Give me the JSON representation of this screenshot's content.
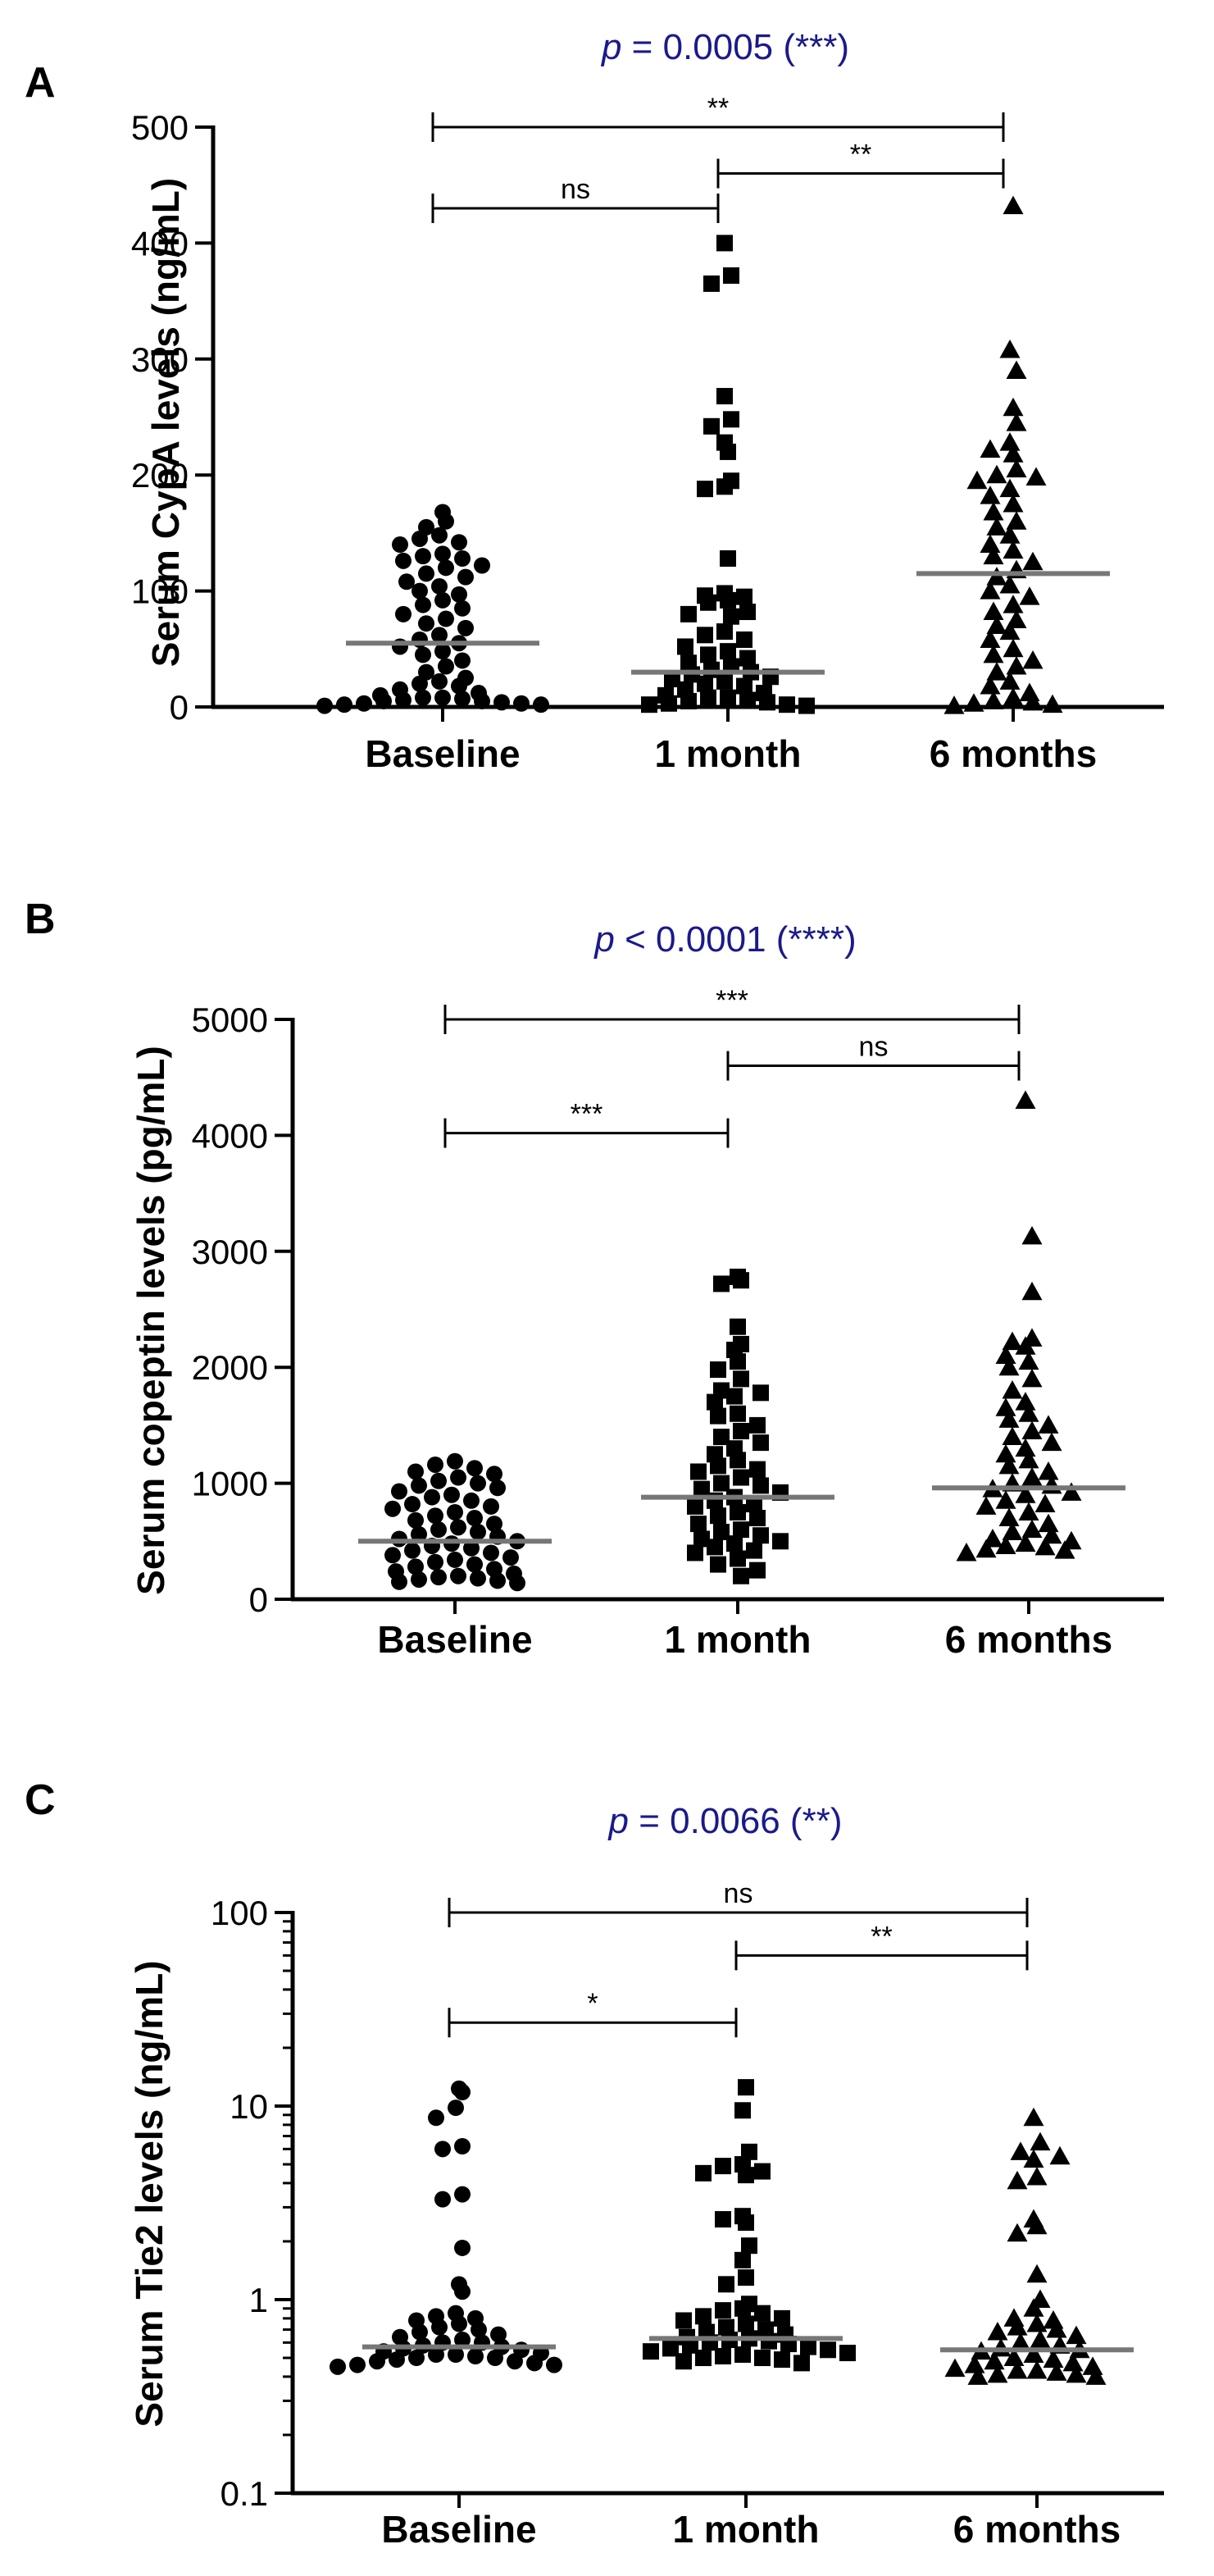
{
  "figure": {
    "panels": [
      "A",
      "B",
      "C"
    ]
  },
  "chart_data": [
    {
      "panel": "A",
      "type": "scatter",
      "title_prefix": "p",
      "title_rest": " = 0.0005 (***)",
      "xlabel": "",
      "ylabel": "Serum CypA levels (ng/mL)",
      "categories": [
        "Baseline",
        "1 month",
        "6 months"
      ],
      "markers": [
        "circle",
        "square",
        "triangle"
      ],
      "yscale": "linear",
      "ylim": [
        0,
        500
      ],
      "yticks": [
        0,
        100,
        200,
        300,
        400,
        500
      ],
      "yticklabels": [
        "0",
        "100",
        "200",
        "300",
        "400",
        "500"
      ],
      "medians": [
        55,
        30,
        115
      ],
      "comparisons": [
        {
          "from": 0,
          "to": 2,
          "label": "**",
          "y": 500
        },
        {
          "from": 1,
          "to": 2,
          "label": "**",
          "y": 460
        },
        {
          "from": 0,
          "to": 1,
          "label": "ns",
          "y": 430
        }
      ],
      "groups": [
        {
          "name": "Baseline",
          "values": [
            160,
            168,
            155,
            148,
            145,
            142,
            140,
            132,
            130,
            128,
            126,
            122,
            120,
            115,
            112,
            108,
            104,
            100,
            97,
            92,
            88,
            85,
            80,
            76,
            72,
            68,
            62,
            58,
            55,
            52,
            48,
            45,
            40,
            35,
            30,
            25,
            22,
            20,
            18,
            15,
            12,
            10,
            8,
            8,
            7,
            6,
            5,
            5,
            4,
            3,
            3,
            2,
            2,
            1
          ]
        },
        {
          "name": "1 month",
          "values": [
            400,
            372,
            365,
            268,
            248,
            242,
            228,
            220,
            195,
            190,
            188,
            128,
            98,
            96,
            95,
            92,
            90,
            82,
            80,
            78,
            65,
            62,
            58,
            52,
            48,
            45,
            42,
            38,
            35,
            32,
            30,
            28,
            26,
            24,
            22,
            20,
            18,
            15,
            12,
            10,
            8,
            8,
            6,
            5,
            4,
            3,
            2,
            2,
            1
          ]
        },
        {
          "name": "6 months",
          "values": [
            432,
            308,
            290,
            258,
            245,
            228,
            222,
            218,
            205,
            200,
            198,
            195,
            188,
            182,
            175,
            168,
            160,
            155,
            148,
            140,
            135,
            130,
            125,
            118,
            112,
            105,
            100,
            95,
            88,
            82,
            75,
            70,
            65,
            58,
            50,
            45,
            40,
            35,
            30,
            22,
            18,
            12,
            8,
            5,
            4,
            3,
            2,
            1
          ]
        }
      ]
    },
    {
      "panel": "B",
      "type": "scatter",
      "title_prefix": "p",
      "title_rest": " < 0.0001 (****)",
      "xlabel": "",
      "ylabel": "Serum copeptin levels (pg/mL)",
      "categories": [
        "Baseline",
        "1 month",
        "6 months"
      ],
      "markers": [
        "circle",
        "square",
        "triangle"
      ],
      "yscale": "linear",
      "ylim": [
        0,
        5000
      ],
      "yticks": [
        0,
        1000,
        2000,
        3000,
        4000,
        5000
      ],
      "yticklabels": [
        "0",
        "1000",
        "2000",
        "3000",
        "4000",
        "5000"
      ],
      "medians": [
        500,
        880,
        960
      ],
      "comparisons": [
        {
          "from": 0,
          "to": 2,
          "label": "***",
          "y": 5000
        },
        {
          "from": 1,
          "to": 2,
          "label": "ns",
          "y": 4600
        },
        {
          "from": 0,
          "to": 1,
          "label": "***",
          "y": 4020
        }
      ],
      "groups": [
        {
          "name": "Baseline",
          "values": [
            1190,
            1160,
            1130,
            1100,
            1080,
            1050,
            1020,
            1000,
            980,
            960,
            930,
            900,
            880,
            850,
            820,
            800,
            780,
            750,
            720,
            700,
            680,
            650,
            620,
            600,
            580,
            560,
            540,
            520,
            500,
            480,
            460,
            440,
            420,
            400,
            380,
            360,
            340,
            320,
            300,
            280,
            260,
            240,
            220,
            200,
            190,
            180,
            170,
            160,
            150,
            140
          ]
        },
        {
          "name": "1 month",
          "values": [
            2780,
            2750,
            2720,
            2350,
            2200,
            2150,
            2050,
            1980,
            1900,
            1800,
            1780,
            1750,
            1700,
            1600,
            1580,
            1500,
            1450,
            1400,
            1350,
            1300,
            1250,
            1200,
            1150,
            1120,
            1100,
            1050,
            1000,
            980,
            950,
            920,
            880,
            850,
            820,
            800,
            750,
            720,
            700,
            650,
            600,
            580,
            550,
            520,
            500,
            480,
            450,
            420,
            400,
            350,
            300,
            250,
            200
          ]
        },
        {
          "name": "6 months",
          "values": [
            4300,
            3130,
            2650,
            2250,
            2220,
            2180,
            2100,
            2050,
            2000,
            1900,
            1800,
            1700,
            1650,
            1600,
            1550,
            1500,
            1450,
            1400,
            1350,
            1300,
            1250,
            1200,
            1150,
            1100,
            1050,
            1000,
            980,
            950,
            920,
            900,
            850,
            820,
            800,
            750,
            700,
            650,
            600,
            580,
            550,
            520,
            500,
            480,
            460,
            450,
            430,
            420,
            400
          ]
        }
      ]
    },
    {
      "panel": "C",
      "type": "scatter",
      "title_prefix": "p",
      "title_rest": " = 0.0066 (**)",
      "xlabel": "",
      "ylabel": "Serum Tie2 levels (ng/mL)",
      "categories": [
        "Baseline",
        "1 month",
        "6 months"
      ],
      "markers": [
        "circle",
        "square",
        "triangle"
      ],
      "yscale": "log",
      "ylim": [
        0.1,
        100
      ],
      "yticks": [
        0.1,
        1,
        10,
        100
      ],
      "yticklabels": [
        "0.1",
        "1",
        "10",
        "100"
      ],
      "medians": [
        0.57,
        0.63,
        0.55
      ],
      "comparisons": [
        {
          "from": 0,
          "to": 2,
          "label": "ns",
          "y": 100
        },
        {
          "from": 1,
          "to": 2,
          "label": "**",
          "y": 60
        },
        {
          "from": 0,
          "to": 1,
          "label": "*",
          "y": 27
        }
      ],
      "groups": [
        {
          "name": "Baseline",
          "values": [
            12.3,
            11.8,
            9.8,
            8.7,
            6.2,
            6.0,
            3.5,
            3.3,
            1.85,
            1.2,
            1.1,
            0.85,
            0.82,
            0.8,
            0.78,
            0.75,
            0.72,
            0.7,
            0.68,
            0.66,
            0.64,
            0.62,
            0.6,
            0.6,
            0.58,
            0.57,
            0.56,
            0.55,
            0.54,
            0.53,
            0.52,
            0.52,
            0.51,
            0.5,
            0.5,
            0.49,
            0.48,
            0.48,
            0.47,
            0.46,
            0.46,
            0.45
          ]
        },
        {
          "name": "1 month",
          "values": [
            12.5,
            9.5,
            5.8,
            5.0,
            4.9,
            4.6,
            4.5,
            4.4,
            2.7,
            2.6,
            2.5,
            1.9,
            1.6,
            1.3,
            1.2,
            0.95,
            0.9,
            0.88,
            0.85,
            0.82,
            0.8,
            0.78,
            0.75,
            0.72,
            0.7,
            0.68,
            0.66,
            0.64,
            0.63,
            0.62,
            0.61,
            0.6,
            0.59,
            0.58,
            0.57,
            0.56,
            0.55,
            0.54,
            0.53,
            0.52,
            0.51,
            0.5,
            0.5,
            0.49,
            0.48,
            0.47
          ]
        },
        {
          "name": "6 months",
          "values": [
            8.7,
            6.5,
            5.8,
            5.5,
            5.3,
            4.3,
            4.1,
            2.6,
            2.4,
            2.2,
            1.35,
            1.0,
            0.9,
            0.8,
            0.78,
            0.75,
            0.72,
            0.7,
            0.68,
            0.65,
            0.62,
            0.6,
            0.58,
            0.56,
            0.55,
            0.54,
            0.52,
            0.5,
            0.49,
            0.48,
            0.47,
            0.46,
            0.45,
            0.44,
            0.43,
            0.43,
            0.42,
            0.41,
            0.41,
            0.4,
            0.4
          ]
        }
      ]
    }
  ]
}
